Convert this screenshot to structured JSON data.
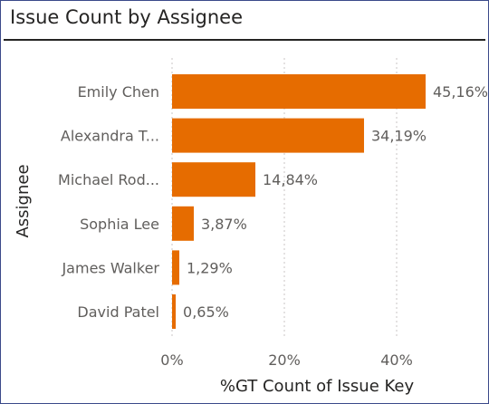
{
  "chart_data": {
    "type": "bar",
    "orientation": "horizontal",
    "title": "Issue Count by Assignee",
    "xlabel": "%GT Count of Issue Key",
    "ylabel": "Assignee",
    "categories": [
      "Emily Chen",
      "Alexandra T...",
      "Michael Rod...",
      "Sophia Lee",
      "James Walker",
      "David Patel"
    ],
    "values": [
      45.16,
      34.19,
      14.84,
      3.87,
      1.29,
      0.65
    ],
    "value_labels": [
      "45,16%",
      "34,19%",
      "14,84%",
      "3,87%",
      "1,29%",
      "0,65%"
    ],
    "xticks": [
      0,
      20,
      40
    ],
    "xtick_labels": [
      "0%",
      "20%",
      "40%"
    ],
    "xlim": [
      0,
      47
    ],
    "grid": true,
    "colors": {
      "bar": "#E66C00",
      "grid": "#c8c6c4"
    }
  }
}
